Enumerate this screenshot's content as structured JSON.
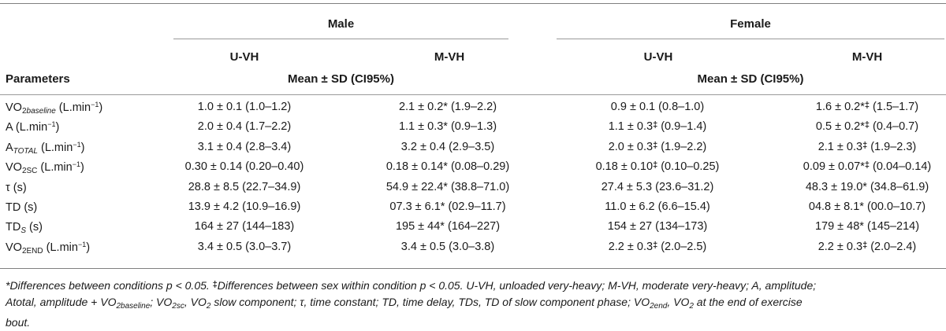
{
  "header": {
    "group_male": "Male",
    "group_female": "Female",
    "cond_uvh": "U-VH",
    "cond_mvh": "M-VH",
    "param_label": "Parameters",
    "stat_label": "Mean ± SD (CI95%)"
  },
  "rows": [
    {
      "label_main": "VO",
      "label_sub": "2",
      "label_sub_italic": "baseline",
      "label_unit": " (L.min",
      "label_sup": "−1",
      "label_end": ")",
      "male_u": "1.0 ± 0.1 (1.0–1.2)",
      "male_m_a": "2.1 ± 0.2*",
      "male_m_mark": "",
      "male_m_b": " (1.9–2.2)",
      "fem_u_a": "0.9 ± 0.1",
      "fem_u_mark": "",
      "fem_u_b": " (0.8–1.0)",
      "fem_m_a": "1.6 ± 0.2*",
      "fem_m_mark": "‡",
      "fem_m_b": " (1.5–1.7)"
    },
    {
      "label_main": "A (L.min",
      "label_sub": "",
      "label_sub_italic": "",
      "label_unit": "",
      "label_sup": "−1",
      "label_end": ")",
      "male_u": "2.0 ± 0.4 (1.7–2.2)",
      "male_m_a": "1.1 ± 0.3*",
      "male_m_mark": "",
      "male_m_b": " (0.9–1.3)",
      "fem_u_a": "1.1 ± 0.3",
      "fem_u_mark": "‡",
      "fem_u_b": " (0.9–1.4)",
      "fem_m_a": "0.5 ± 0.2*",
      "fem_m_mark": "‡",
      "fem_m_b": " (0.4–0.7)"
    },
    {
      "label_main": "A",
      "label_sub": "",
      "label_sub_italic": "TOTAL",
      "label_unit": " (L.min",
      "label_sup": "−1",
      "label_end": ")",
      "male_u": "3.1 ± 0.4 (2.8–3.4)",
      "male_m_a": "3.2 ± 0.4",
      "male_m_mark": "",
      "male_m_b": " (2.9–3.5)",
      "fem_u_a": "2.0 ± 0.3",
      "fem_u_mark": "‡",
      "fem_u_b": " (1.9–2.2)",
      "fem_m_a": "2.1 ± 0.3",
      "fem_m_mark": "‡",
      "fem_m_b": " (1.9–2.3)"
    },
    {
      "label_main": "VO",
      "label_sub": "2SC",
      "label_sub_italic": "",
      "label_unit": " (L.min",
      "label_sup": "−1",
      "label_end": ")",
      "male_u": "0.30 ± 0.14 (0.20–0.40)",
      "male_m_a": "0.18 ± 0.14*",
      "male_m_mark": "",
      "male_m_b": " (0.08–0.29)",
      "fem_u_a": "0.18 ± 0.10",
      "fem_u_mark": "‡",
      "fem_u_b": " (0.10–0.25)",
      "fem_m_a": "0.09 ± 0.07*",
      "fem_m_mark": "‡",
      "fem_m_b": " (0.04–0.14)"
    },
    {
      "label_main": "τ (s)",
      "label_sub": "",
      "label_sub_italic": "",
      "label_unit": "",
      "label_sup": "",
      "label_end": "",
      "male_u": "28.8 ± 8.5 (22.7–34.9)",
      "male_m_a": "54.9 ± 22.4*",
      "male_m_mark": "",
      "male_m_b": " (38.8–71.0)",
      "fem_u_a": "27.4 ± 5.3",
      "fem_u_mark": "",
      "fem_u_b": " (23.6–31.2)",
      "fem_m_a": "48.3 ± 19.0*",
      "fem_m_mark": "",
      "fem_m_b": " (34.8–61.9)"
    },
    {
      "label_main": "TD (s)",
      "label_sub": "",
      "label_sub_italic": "",
      "label_unit": "",
      "label_sup": "",
      "label_end": "",
      "male_u": "13.9 ± 4.2 (10.9–16.9)",
      "male_m_a": "07.3 ± 6.1*",
      "male_m_mark": "",
      "male_m_b": " (02.9–11.7)",
      "fem_u_a": "11.0 ± 6.2",
      "fem_u_mark": "",
      "fem_u_b": " (6.6–15.4)",
      "fem_m_a": "04.8 ± 8.1*",
      "fem_m_mark": "",
      "fem_m_b": " (00.0–10.7)"
    },
    {
      "label_main": "TD",
      "label_sub": "",
      "label_sub_italic": "S",
      "label_unit": " (s)",
      "label_sup": "",
      "label_end": "",
      "male_u": "164 ± 27 (144–183)",
      "male_m_a": "195 ± 44*",
      "male_m_mark": "",
      "male_m_b": " (164–227)",
      "fem_u_a": "154 ± 27",
      "fem_u_mark": "",
      "fem_u_b": " (134–173)",
      "fem_m_a": "179 ± 48*",
      "fem_m_mark": "",
      "fem_m_b": " (145–214)"
    },
    {
      "label_main": "VO",
      "label_sub": "2END",
      "label_sub_italic": "",
      "label_unit": " (L.min",
      "label_sup": "−1",
      "label_end": ")",
      "male_u": "3.4 ± 0.5 (3.0–3.7)",
      "male_m_a": "3.4 ± 0.5",
      "male_m_mark": "",
      "male_m_b": " (3.0–3.8)",
      "fem_u_a": "2.2 ± 0.3",
      "fem_u_mark": "‡",
      "fem_u_b": " (2.0–2.5)",
      "fem_m_a": "2.2 ± 0.3",
      "fem_m_mark": "‡",
      "fem_m_b": " (2.0–2.4)"
    }
  ],
  "footnote": {
    "p1": "*Differences between conditions p < 0.05. ",
    "mark": "‡",
    "p2": "Differences between sex within condition p < 0.05. U-VH, unloaded very-heavy; M-VH, moderate very-heavy; A, amplitude;",
    "p3": "Atotal, amplitude + VO",
    "p3_sub": "2baseline",
    "p4": "; VO",
    "p4_sub": "2sc",
    "p5": ", VO",
    "p5_sub": "2",
    "p6": " slow component; τ, time constant; TD, time delay, TDs, TD of slow component phase; VO",
    "p6_sub": "2end",
    "p7": ", VO",
    "p7_sub": "2",
    "p8": " at the end of exercise",
    "p9": "bout."
  }
}
